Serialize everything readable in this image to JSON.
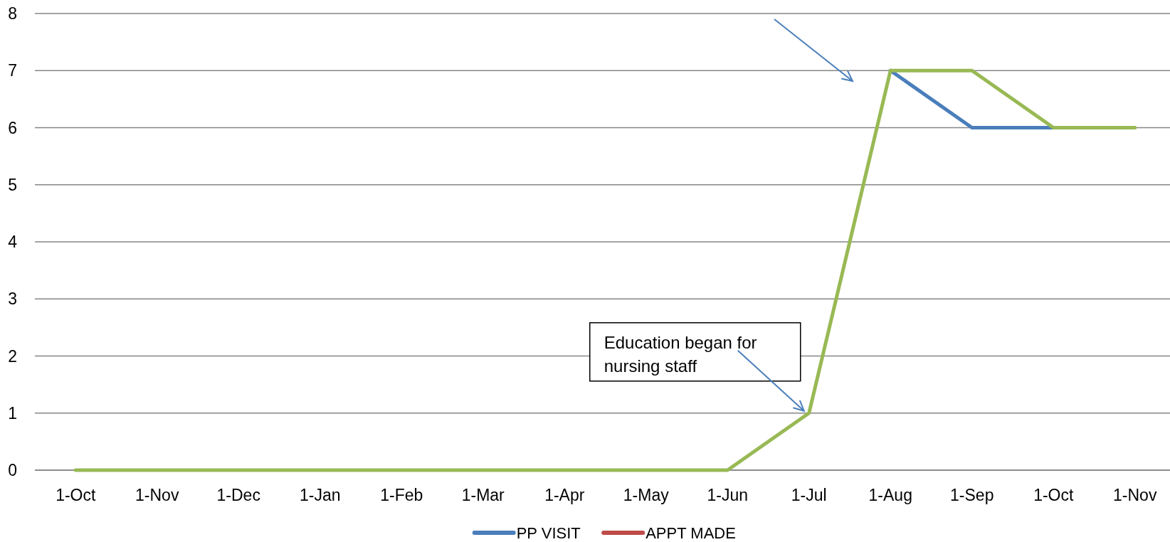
{
  "chart_data": {
    "type": "line",
    "categories": [
      "1-Oct",
      "1-Nov",
      "1-Dec",
      "1-Jan",
      "1-Feb",
      "1-Mar",
      "1-Apr",
      "1-May",
      "1-Jun",
      "1-Jul",
      "1-Aug",
      "1-Sep",
      "1-Oct",
      "1-Nov"
    ],
    "series": [
      {
        "name": "PP VISIT",
        "color": "#4a7ebb",
        "values": [
          null,
          null,
          null,
          null,
          null,
          null,
          null,
          null,
          null,
          null,
          7,
          6,
          6,
          null
        ]
      },
      {
        "name": "APPT MADE",
        "color": "#be4b48",
        "values": [
          null,
          null,
          null,
          null,
          null,
          null,
          null,
          null,
          null,
          null,
          null,
          null,
          null,
          null
        ]
      },
      {
        "color": "#98b954",
        "values": [
          0,
          0,
          0,
          0,
          0,
          0,
          0,
          0,
          0,
          1,
          7,
          7,
          6,
          6
        ]
      }
    ],
    "ylim": [
      0,
      8
    ],
    "yticks": [
      0,
      1,
      2,
      3,
      4,
      5,
      6,
      7,
      8
    ],
    "grid": "y",
    "legend": "bottom",
    "line_style": "solid",
    "annotations": [
      {
        "text": "Education began for nursing staff",
        "x": "1-Jul",
        "y": 1
      }
    ]
  }
}
